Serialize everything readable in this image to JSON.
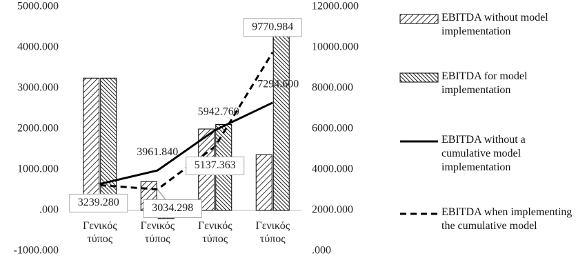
{
  "chart_data": {
    "type": "bar-line",
    "categories": [
      "Γενικός τύπος",
      "Γενικός τύπος",
      "Γενικός τύπος",
      "Γενικός τύπος"
    ],
    "series": [
      {
        "name": "EBITDA without model implementation",
        "type": "bar",
        "hatch": "diagonal-up",
        "color": "#000000",
        "values": [
          3250,
          710,
          2000,
          1370
        ]
      },
      {
        "name": "EBITDA for model implementation",
        "type": "bar",
        "hatch": "diagonal-down",
        "color": "#000000",
        "values": [
          3250,
          -200,
          2110,
          4630
        ]
      },
      {
        "name": "EBITDA without a cumulative model implementation",
        "type": "line",
        "dashed": false,
        "color": "#000000",
        "axis": "y2",
        "values": [
          3300,
          3961.84,
          5942.76,
          7294.6
        ],
        "value_labels": [
          null,
          "3961.840",
          "5942.760",
          "7294.600"
        ]
      },
      {
        "name": "EBITDA when implementing the cumulative model",
        "type": "line",
        "dashed": true,
        "color": "#000000",
        "axis": "y2",
        "values": [
          3239.28,
          3034.298,
          5137.363,
          9770.984
        ],
        "value_labels": [
          "3239.280",
          "3034.298",
          "5137.363",
          "9770.984"
        ]
      }
    ],
    "ylim": [
      -1000,
      5000
    ],
    "yticks": [
      {
        "value": -1000,
        "label": "-1000.000"
      },
      {
        "value": 0,
        "label": ".000"
      },
      {
        "value": 1000,
        "label": "1000.000"
      },
      {
        "value": 2000,
        "label": "2000.000"
      },
      {
        "value": 3000,
        "label": "3000.000"
      },
      {
        "value": 4000,
        "label": "4000.000"
      },
      {
        "value": 5000,
        "label": "5000.000"
      }
    ],
    "y2lim": [
      0,
      12000
    ],
    "y2ticks": [
      {
        "value": 0,
        "label": ".000"
      },
      {
        "value": 2000,
        "label": "2000.000"
      },
      {
        "value": 4000,
        "label": "4000.000"
      },
      {
        "value": 6000,
        "label": "6000.000"
      },
      {
        "value": 8000,
        "label": "8000.000"
      },
      {
        "value": 10000,
        "label": "10000.000"
      },
      {
        "value": 12000,
        "label": "12000.000"
      }
    ],
    "legend": "right"
  }
}
